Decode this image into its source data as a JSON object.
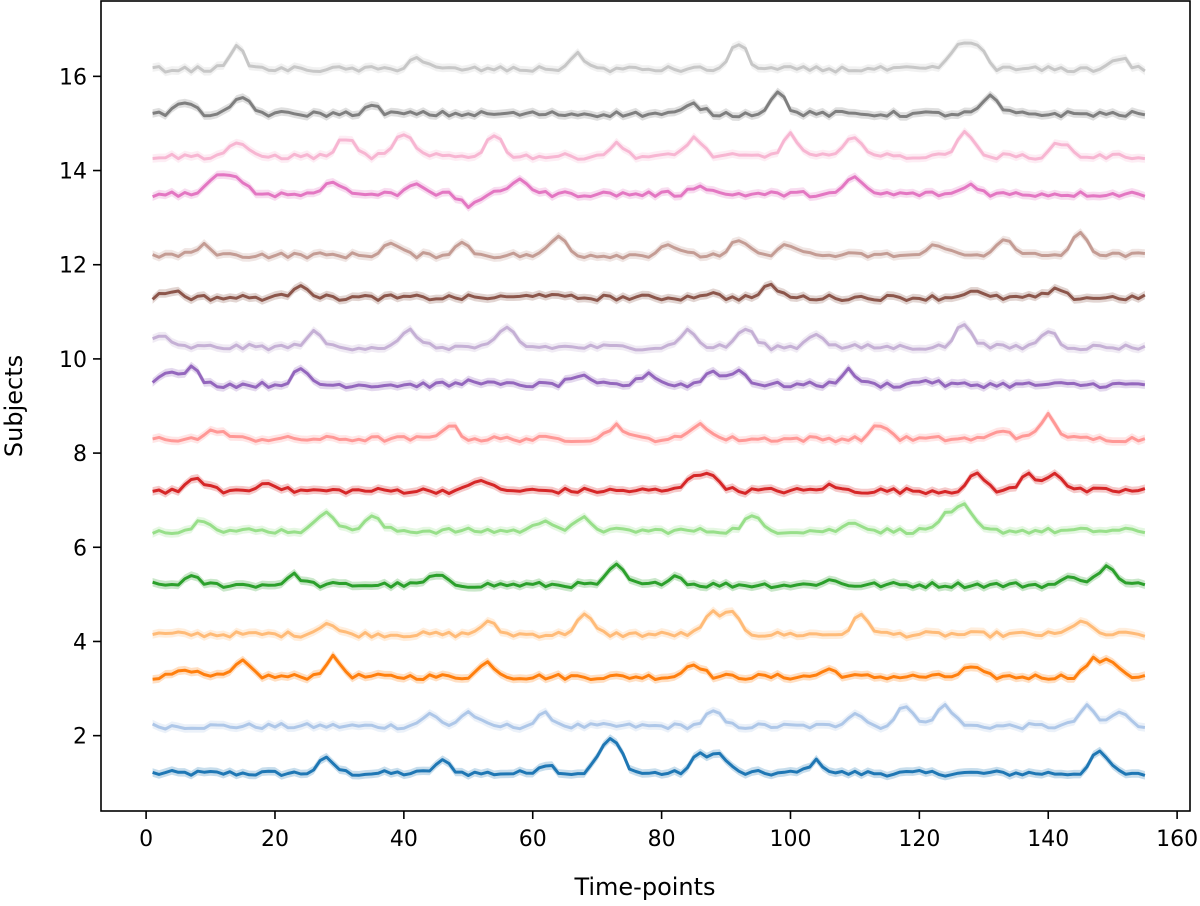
{
  "chart_data": {
    "type": "line",
    "xlabel": "Time-points",
    "ylabel": "Subjects",
    "xlim": [
      -7,
      162
    ],
    "ylim": [
      0.4,
      17.6
    ],
    "x_ticks": [
      0,
      20,
      40,
      60,
      80,
      100,
      120,
      140,
      160
    ],
    "y_ticks": [
      2,
      4,
      6,
      8,
      10,
      12,
      14,
      16
    ],
    "grid": false,
    "legend": "none",
    "x_range": [
      1,
      155
    ],
    "band_halfwidth": 0.09,
    "series": [
      {
        "color": "#1f77b4",
        "baseline": 1.2,
        "peaks": [
          [
            28,
            0.3
          ],
          [
            46,
            0.25
          ],
          [
            62,
            0.2
          ],
          [
            71,
            0.45
          ],
          [
            73,
            0.5
          ],
          [
            86,
            0.4
          ],
          [
            89,
            0.38
          ],
          [
            104,
            0.25
          ],
          [
            148,
            0.45
          ]
        ]
      },
      {
        "color": "#aec7e8",
        "baseline": 2.2,
        "peaks": [
          [
            44,
            0.25
          ],
          [
            50,
            0.3
          ],
          [
            62,
            0.25
          ],
          [
            88,
            0.3
          ],
          [
            110,
            0.3
          ],
          [
            118,
            0.45
          ],
          [
            124,
            0.45
          ],
          [
            146,
            0.4
          ],
          [
            151,
            0.3
          ]
        ]
      },
      {
        "color": "#ff7f0e",
        "baseline": 3.25,
        "peaks": [
          [
            6,
            0.2
          ],
          [
            15,
            0.3
          ],
          [
            29,
            0.4
          ],
          [
            53,
            0.3
          ],
          [
            85,
            0.3
          ],
          [
            106,
            0.15
          ],
          [
            128,
            0.2
          ],
          [
            147,
            0.35
          ],
          [
            150,
            0.3
          ]
        ]
      },
      {
        "color": "#ffbb78",
        "baseline": 4.15,
        "peaks": [
          [
            28,
            0.25
          ],
          [
            53,
            0.25
          ],
          [
            68,
            0.4
          ],
          [
            88,
            0.45
          ],
          [
            91,
            0.4
          ],
          [
            111,
            0.4
          ],
          [
            145,
            0.3
          ]
        ]
      },
      {
        "color": "#2ca02c",
        "baseline": 5.2,
        "peaks": [
          [
            7,
            0.15
          ],
          [
            23,
            0.2
          ],
          [
            45,
            0.2
          ],
          [
            73,
            0.4
          ],
          [
            82,
            0.2
          ],
          [
            106,
            0.1
          ],
          [
            144,
            0.2
          ],
          [
            149,
            0.4
          ]
        ]
      },
      {
        "color": "#98df8a",
        "baseline": 6.35,
        "peaks": [
          [
            9,
            0.25
          ],
          [
            28,
            0.45
          ],
          [
            35,
            0.3
          ],
          [
            62,
            0.25
          ],
          [
            68,
            0.25
          ],
          [
            94,
            0.3
          ],
          [
            110,
            0.2
          ],
          [
            124,
            0.3
          ],
          [
            127,
            0.5
          ]
        ]
      },
      {
        "color": "#d62728",
        "baseline": 7.2,
        "peaks": [
          [
            8,
            0.25
          ],
          [
            19,
            0.2
          ],
          [
            52,
            0.25
          ],
          [
            85,
            0.35
          ],
          [
            88,
            0.3
          ],
          [
            106,
            0.1
          ],
          [
            129,
            0.35
          ],
          [
            137,
            0.35
          ],
          [
            141,
            0.4
          ]
        ]
      },
      {
        "color": "#ff9896",
        "baseline": 8.3,
        "peaks": [
          [
            11,
            0.2
          ],
          [
            47,
            0.3
          ],
          [
            73,
            0.3
          ],
          [
            86,
            0.35
          ],
          [
            114,
            0.3
          ],
          [
            133,
            0.2
          ],
          [
            140,
            0.5
          ]
        ]
      },
      {
        "color": "#9467bd",
        "baseline": 9.45,
        "peaks": [
          [
            3,
            0.3
          ],
          [
            7,
            0.35
          ],
          [
            24,
            0.3
          ],
          [
            51,
            0.1
          ],
          [
            67,
            0.2
          ],
          [
            78,
            0.25
          ],
          [
            88,
            0.3
          ],
          [
            92,
            0.3
          ],
          [
            109,
            0.3
          ],
          [
            121,
            0.1
          ]
        ]
      },
      {
        "color": "#c5b0d5",
        "baseline": 10.25,
        "peaks": [
          [
            2,
            0.25
          ],
          [
            26,
            0.3
          ],
          [
            41,
            0.35
          ],
          [
            56,
            0.4
          ],
          [
            84,
            0.35
          ],
          [
            93,
            0.4
          ],
          [
            104,
            0.3
          ],
          [
            127,
            0.5
          ],
          [
            140,
            0.35
          ]
        ]
      },
      {
        "color": "#8c564b",
        "baseline": 11.3,
        "peaks": [
          [
            4,
            0.15
          ],
          [
            24,
            0.3
          ],
          [
            61,
            0.1
          ],
          [
            87,
            0.1
          ],
          [
            97,
            0.25
          ],
          [
            128,
            0.15
          ],
          [
            141,
            0.15
          ]
        ]
      },
      {
        "color": "#c49c94",
        "baseline": 12.2,
        "peaks": [
          [
            9,
            0.2
          ],
          [
            38,
            0.25
          ],
          [
            49,
            0.25
          ],
          [
            64,
            0.4
          ],
          [
            81,
            0.25
          ],
          [
            92,
            0.3
          ],
          [
            100,
            0.25
          ],
          [
            123,
            0.25
          ],
          [
            133,
            0.35
          ],
          [
            145,
            0.45
          ]
        ]
      },
      {
        "color": "#e377c2",
        "baseline": 13.5,
        "peaks": [
          [
            11,
            0.35
          ],
          [
            14,
            0.4
          ],
          [
            29,
            0.3
          ],
          [
            42,
            0.25
          ],
          [
            50,
            -0.25
          ],
          [
            58,
            0.35
          ],
          [
            86,
            0.2
          ],
          [
            110,
            0.35
          ],
          [
            128,
            0.2
          ]
        ]
      },
      {
        "color": "#f7b6d2",
        "baseline": 14.3,
        "peaks": [
          [
            14,
            0.3
          ],
          [
            31,
            0.4
          ],
          [
            40,
            0.5
          ],
          [
            54,
            0.45
          ],
          [
            73,
            0.25
          ],
          [
            85,
            0.4
          ],
          [
            100,
            0.45
          ],
          [
            110,
            0.45
          ],
          [
            127,
            0.55
          ],
          [
            142,
            0.3
          ]
        ]
      },
      {
        "color": "#7f7f7f",
        "baseline": 15.2,
        "peaks": [
          [
            6,
            0.25
          ],
          [
            15,
            0.35
          ],
          [
            35,
            0.15
          ],
          [
            85,
            0.2
          ],
          [
            98,
            0.45
          ],
          [
            131,
            0.35
          ]
        ]
      },
      {
        "color": "#c7c7c7",
        "baseline": 16.15,
        "peaks": [
          [
            14,
            0.45
          ],
          [
            42,
            0.25
          ],
          [
            67,
            0.3
          ],
          [
            92,
            0.55
          ],
          [
            126,
            0.5
          ],
          [
            129,
            0.5
          ],
          [
            151,
            0.25
          ]
        ]
      }
    ]
  }
}
